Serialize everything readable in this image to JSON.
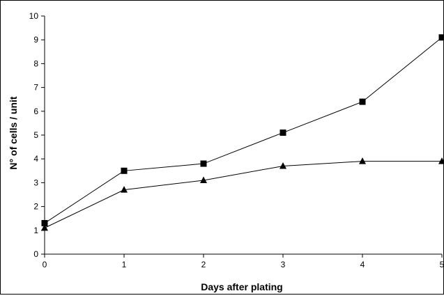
{
  "chart_data": {
    "type": "line",
    "title": "",
    "xlabel": "Days after plating",
    "ylabel": "N° of cells / unit",
    "x": [
      0,
      1,
      2,
      3,
      4,
      5
    ],
    "xlim": [
      0,
      5
    ],
    "ylim": [
      0,
      10
    ],
    "xticks": [
      "0",
      "1",
      "2",
      "3",
      "4",
      "5"
    ],
    "yticks": [
      "0",
      "1",
      "2",
      "3",
      "4",
      "5",
      "6",
      "7",
      "8",
      "9",
      "10"
    ],
    "grid": false,
    "legend": "none",
    "series": [
      {
        "marker": "square",
        "color": "#000000",
        "values": [
          1.3,
          3.5,
          3.8,
          5.1,
          6.4,
          9.1
        ]
      },
      {
        "marker": "triangle",
        "color": "#000000",
        "values": [
          1.1,
          2.7,
          3.1,
          3.7,
          3.9,
          3.9
        ]
      }
    ]
  }
}
